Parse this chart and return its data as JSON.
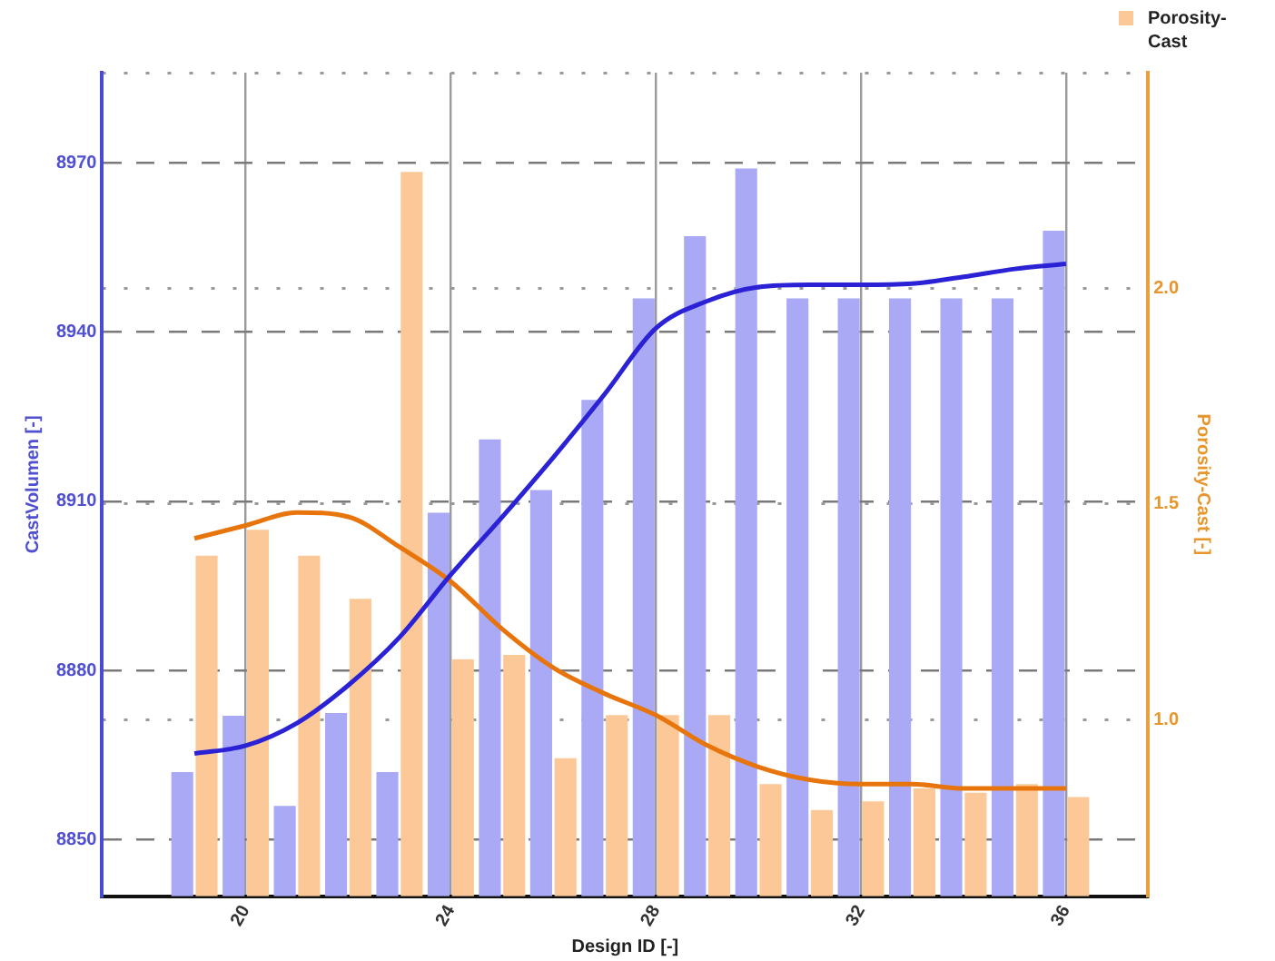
{
  "chart_data": {
    "type": "bar",
    "xlabel": "Design ID [-]",
    "ylabel": "CastVolumen [-]",
    "y2label": "Porosity-Cast [-]",
    "x": [
      19,
      20,
      21,
      22,
      23,
      24,
      25,
      26,
      27,
      28,
      29,
      30,
      31,
      32,
      33,
      34,
      35,
      36
    ],
    "xlim": [
      17.2,
      37.6
    ],
    "xticks": [
      20,
      24,
      28,
      32,
      36
    ],
    "ylim": [
      8840,
      8986
    ],
    "yticks": [
      8850,
      8880,
      8910,
      8940,
      8970
    ],
    "y2lim": [
      0.59,
      2.5
    ],
    "y2ticks": [
      {
        "value": 1,
        "label": "1.0"
      },
      {
        "value": 1.5,
        "label": "1.5"
      },
      {
        "value": 2,
        "label": "2.0"
      },
      {
        "value": 2.5,
        "label": null
      }
    ],
    "grid": true,
    "legend": "top right",
    "series": [
      {
        "color": "#a9a9f6",
        "values": [
          8862,
          8872,
          8856,
          8872.5,
          8862,
          8908,
          8921,
          8912,
          8928,
          8946,
          8957,
          8969,
          8946,
          8946,
          8946,
          8946,
          8946,
          8958
        ]
      },
      {
        "name": "Porosity-Cast",
        "axis": "y2",
        "color": "#fdc898",
        "values": [
          1.38,
          1.44,
          1.38,
          1.28,
          2.27,
          1.14,
          1.15,
          0.91,
          1.01,
          1.01,
          1.01,
          0.85,
          0.79,
          0.81,
          0.84,
          0.83,
          0.85,
          0.82
        ]
      },
      {
        "type": "line",
        "color": "#2a22d4",
        "marker": "none",
        "values": [
          8865.3,
          8866.7,
          8870.7,
          8877.4,
          8885.9,
          8897,
          8907.2,
          8917.8,
          8929,
          8940.7,
          8945.5,
          8948,
          8948.4,
          8948.4,
          8948.6,
          8949.8,
          8951.2,
          8952.1
        ]
      },
      {
        "type": "line",
        "axis": "y2",
        "color": "#e8740c",
        "marker": "none",
        "values": [
          1.42,
          1.45,
          1.48,
          1.47,
          1.4,
          1.32,
          1.21,
          1.12,
          1.06,
          1.01,
          0.94,
          0.89,
          0.86,
          0.85,
          0.85,
          0.84,
          0.84,
          0.84
        ]
      }
    ]
  }
}
